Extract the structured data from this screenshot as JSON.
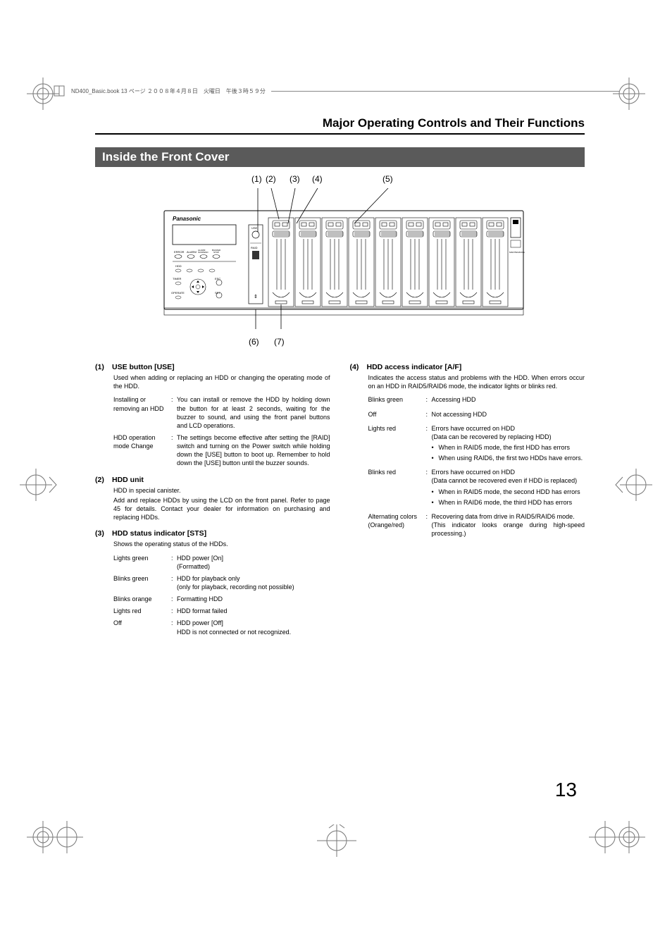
{
  "header_strip": "ND400_Basic.book  13 ページ  ２００８年４月８日　火曜日　午後３時５９分",
  "page_title": "Major Operating Controls and Their Functions",
  "section_title": "Inside the Front Cover",
  "page_number": "13",
  "callouts_top": {
    "c1": "(1)",
    "c2": "(2)",
    "c3": "(3)",
    "c4": "(4)",
    "c5": "(5)"
  },
  "callouts_bottom": {
    "c6": "(6)",
    "c7": "(7)"
  },
  "diagram": {
    "brand": "Panasonic",
    "indicator_labels": [
      "ERROR",
      "ALARM",
      "ALARM SUSPEND",
      "BUZZER STOP"
    ],
    "bottom_labels_row1": [
      "HDD",
      "–",
      "–",
      "–"
    ],
    "row2_left": "TIMER",
    "row2_right": "ESC",
    "row3_left": "OPERATE",
    "row3_right": "SET"
  },
  "diagram_side_labels": {
    "use": "USE",
    "raid": "RAID"
  },
  "col_left": {
    "s1": {
      "num": "(1)",
      "title": "USE button [USE]",
      "desc": "Used when adding or replacing an HDD or changing the operating mode of the HDD.",
      "rows": [
        {
          "term": "Installing or removing an HDD",
          "val": "You can install or remove the HDD by holding down the button for at least 2 seconds, waiting for the buzzer to sound, and using the front panel buttons and LCD operations."
        },
        {
          "term": "HDD operation mode Change",
          "val": "The settings become effective after setting the [RAID] switch and turning on the Power switch while holding down the [USE] button to boot up. Remember to hold down the [USE] button until the buzzer sounds."
        }
      ]
    },
    "s2": {
      "num": "(2)",
      "title": "HDD unit",
      "desc1": "HDD in special canister.",
      "desc2": "Add and replace HDDs by using the LCD on the front panel. Refer to page 45 for details. Contact your dealer for information on purchasing and replacing HDDs."
    },
    "s3": {
      "num": "(3)",
      "title": "HDD status indicator [STS]",
      "desc": "Shows the operating status of the HDDs.",
      "rows": [
        {
          "term": "Lights green",
          "val": "HDD power [On]\n(Formatted)"
        },
        {
          "term": "Blinks green",
          "val": "HDD for playback only\n(only for playback, recording not possible)"
        },
        {
          "term": "Blinks orange",
          "val": "Formatting HDD"
        },
        {
          "term": "Lights red",
          "val": "HDD format failed"
        },
        {
          "term": "Off",
          "val": "HDD power [Off]\nHDD is not connected or not recognized."
        }
      ]
    }
  },
  "col_right": {
    "s4": {
      "num": "(4)",
      "title": "HDD access indicator [A/F]",
      "desc": "Indicates the access status and problems with the HDD. When errors occur on an HDD in RAID5/RAID6 mode, the indicator lights or blinks red.",
      "rows": [
        {
          "term": "Blinks green",
          "val": "Accessing HDD"
        },
        {
          "term": "Off",
          "val": "Not accessing HDD"
        },
        {
          "term": "Lights red",
          "val": "Errors have occurred on HDD\n(Data can be recovered by replacing HDD)",
          "bullets": [
            "When in RAID5 mode, the first HDD has errors",
            "When using RAID6, the first two HDDs have errors."
          ]
        },
        {
          "term": "Blinks red",
          "val": "Errors have occurred on HDD\n(Data cannot be recovered even if HDD is replaced)",
          "bullets": [
            "When in RAID5 mode, the second HDD has errors",
            "When in RAID6 mode, the third HDD has errors"
          ]
        },
        {
          "term": "Alternating colors (Orange/red)",
          "val": "Recovering data from drive in RAID5/RAID6 mode.\n(This indicator looks orange during high-speed processing.)"
        }
      ]
    }
  },
  "colors": {
    "section_bg": "#5a5a5a",
    "text": "#000000",
    "rule": "#000000"
  }
}
